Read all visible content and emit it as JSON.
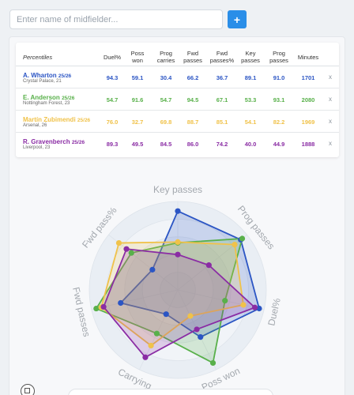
{
  "search": {
    "placeholder": "Enter name of midfielder..."
  },
  "add_button": {
    "label": "+"
  },
  "table": {
    "header_label": "Percentiles",
    "columns": [
      {
        "line1": "Duel%",
        "line2": ""
      },
      {
        "line1": "Poss",
        "line2": "won"
      },
      {
        "line1": "Prog",
        "line2": "carries"
      },
      {
        "line1": "Fwd",
        "line2": "passes"
      },
      {
        "line1": "Fwd",
        "line2": "passes%"
      },
      {
        "line1": "Key",
        "line2": "passes"
      },
      {
        "line1": "Prog",
        "line2": "passes"
      },
      {
        "line1": "Minutes",
        "line2": ""
      }
    ],
    "remove_label": "x",
    "players": [
      {
        "name": "A. Wharton",
        "season": "25/26",
        "club": "Crystal Palace, 21",
        "color": "#2b55c4",
        "values": [
          "94.3",
          "59.1",
          "30.4",
          "66.2",
          "36.7",
          "89.1",
          "91.0",
          "1701"
        ]
      },
      {
        "name": "E. Anderson",
        "season": "25/26",
        "club": "Nottingham Forest, 23",
        "color": "#58b04a",
        "values": [
          "54.7",
          "91.6",
          "54.7",
          "94.5",
          "67.1",
          "53.3",
          "93.1",
          "2080"
        ]
      },
      {
        "name": "Martín Zubimendi",
        "season": "25/26",
        "club": "Arsenal, 26",
        "color": "#f0c24a",
        "values": [
          "76.0",
          "32.7",
          "69.8",
          "88.7",
          "85.1",
          "54.1",
          "82.2",
          "1969"
        ]
      },
      {
        "name": "R. Gravenberch",
        "season": "25/26",
        "club": "Liverpool, 23",
        "color": "#8a2ca4",
        "values": [
          "89.3",
          "49.5",
          "84.5",
          "86.0",
          "74.2",
          "40.0",
          "44.9",
          "1888"
        ]
      }
    ]
  },
  "radar": {
    "axes": [
      "Key passes",
      "Prog passes",
      "Duel%",
      "Poss won",
      "Carrying",
      "Fwd passes",
      "Fwd pass%"
    ],
    "max": 100,
    "series": [
      {
        "color": "#2b55c4",
        "fill": "rgba(43,85,196,0.20)",
        "values": [
          89.1,
          91.0,
          94.3,
          59.1,
          30.4,
          66.2,
          36.7
        ]
      },
      {
        "color": "#58b04a",
        "fill": "rgba(88,176,74,0.20)",
        "values": [
          53.3,
          93.1,
          54.7,
          91.6,
          54.7,
          94.5,
          67.1
        ]
      },
      {
        "color": "#f0c24a",
        "fill": "rgba(240,194,74,0.20)",
        "values": [
          54.1,
          82.2,
          76.0,
          32.7,
          69.8,
          88.7,
          85.1
        ]
      },
      {
        "color": "#8a2ca4",
        "fill": "rgba(138,44,164,0.20)",
        "values": [
          40.0,
          44.9,
          89.3,
          49.5,
          84.5,
          86.0,
          74.2
        ]
      }
    ]
  }
}
